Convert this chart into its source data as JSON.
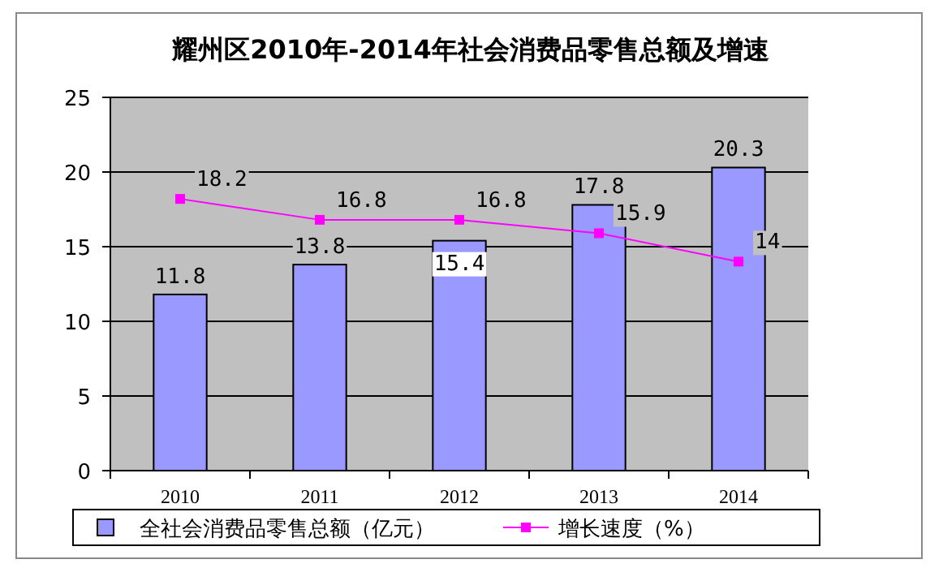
{
  "chart_data": {
    "type": "bar",
    "title": "耀州区2010年-2014年社会消费品零售总额及增速",
    "categories": [
      "2010",
      "2011",
      "2012",
      "2013",
      "2014"
    ],
    "series": [
      {
        "name": "全社会消费品零售总额（亿元）",
        "type": "bar",
        "color": "#9999ff",
        "values": [
          11.8,
          13.8,
          15.4,
          17.8,
          20.3
        ]
      },
      {
        "name": "增长速度（%）",
        "type": "line",
        "color": "#ff00ff",
        "values": [
          18.2,
          16.8,
          16.8,
          15.9,
          14
        ]
      }
    ],
    "ylim": [
      0,
      25
    ],
    "yticks": [
      0,
      5,
      10,
      15,
      20,
      25
    ],
    "grid": "y",
    "legend": "bottom",
    "data_labels": true,
    "marker": "square"
  }
}
